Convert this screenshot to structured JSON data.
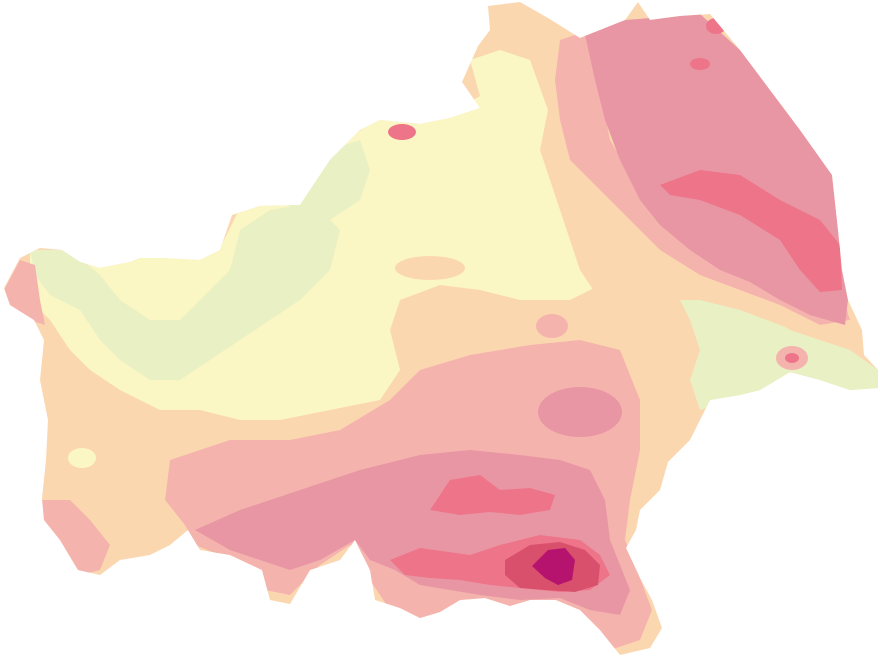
{
  "map": {
    "palette": {
      "lightest": "#e8f0c4",
      "light_yellow": "#fbf7c4",
      "peach": "#fbd7b0",
      "salmon": "#f5b3ad",
      "rose": "#e896a4",
      "pink": "#ee7489",
      "deep_rose": "#d9506c",
      "magenta": "#b5136e"
    }
  }
}
